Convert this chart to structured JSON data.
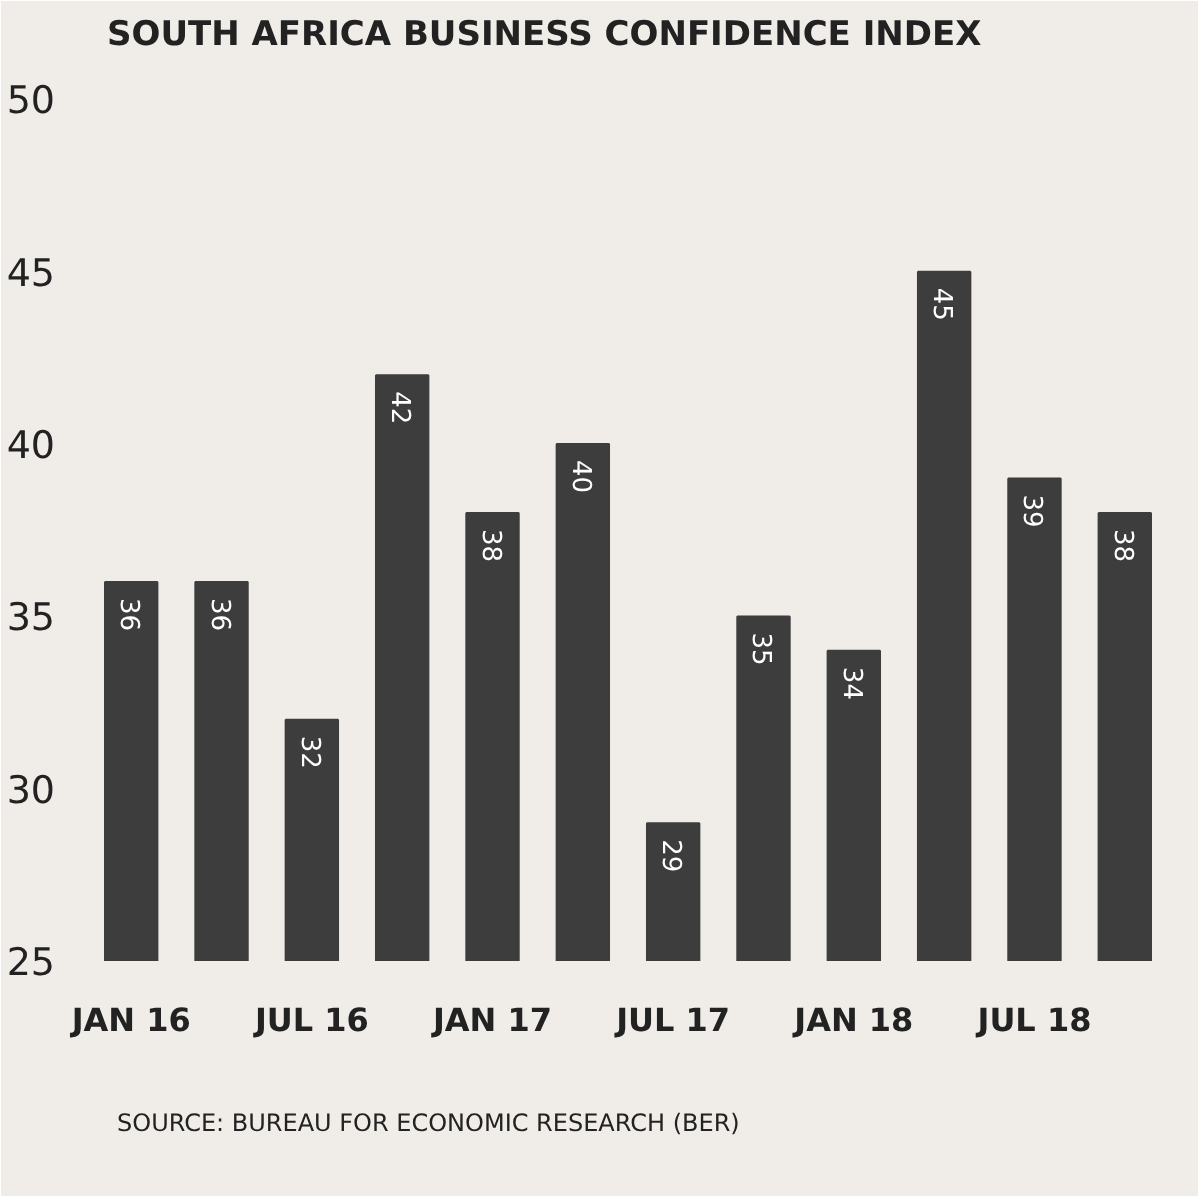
{
  "chart_data": {
    "type": "bar",
    "title": "SOUTH AFRICA BUSINESS CONFIDENCE INDEX",
    "categories": [
      "JAN 16",
      null,
      "JUL 16",
      null,
      "JAN 17",
      null,
      "JUL 17",
      null,
      "JAN 18",
      null,
      "JUL 18",
      null
    ],
    "values": [
      36,
      36,
      32,
      42,
      38,
      40,
      29,
      35,
      34,
      45,
      39,
      38
    ],
    "color": "#3d3d3d",
    "ylim": [
      25,
      51
    ],
    "yticks": [
      25,
      30,
      35,
      40,
      45,
      50
    ],
    "grid": false,
    "data_labels": true,
    "annotations": [
      "SOURCE: BUREAU FOR ECONOMIC RESEARCH (BER)"
    ]
  }
}
